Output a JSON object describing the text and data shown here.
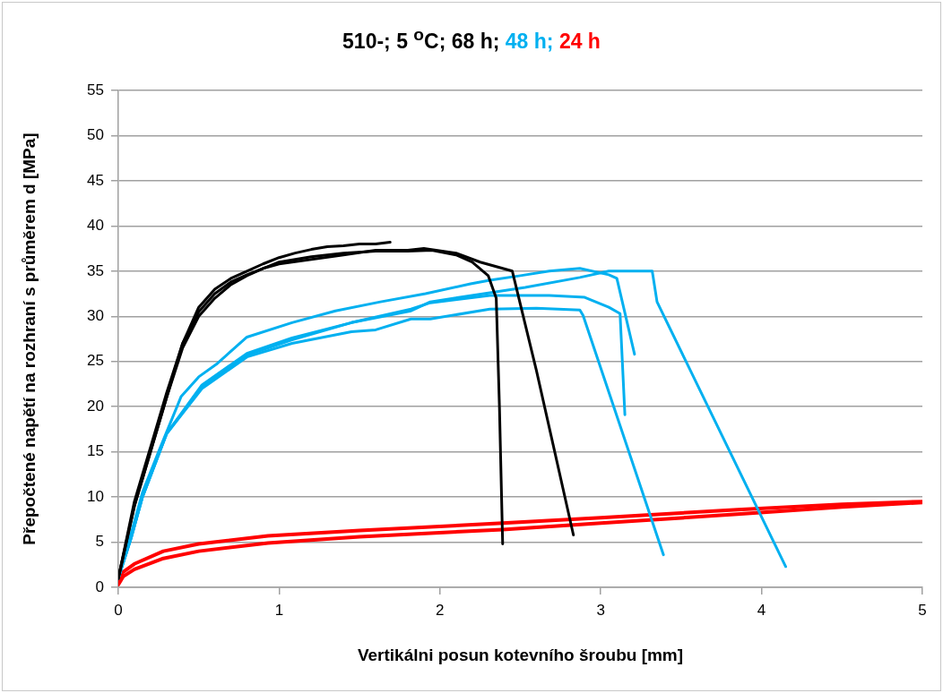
{
  "chart_data": {
    "type": "line",
    "title": "510-; 5 $^{o}$C;",
    "xlabel": "Vertikálni posun kotevního šroubu [mm]",
    "ylabel": "Přepočtené napětí na rozhraní s průměrem d [MPa]",
    "xlim": [
      0,
      5
    ],
    "xticks": [
      0,
      1,
      2,
      3,
      4,
      5
    ],
    "ylim": [
      0,
      55
    ],
    "yticks": [
      0,
      5,
      10,
      15,
      20,
      25,
      30,
      35,
      40,
      45,
      50,
      55
    ],
    "grid": "y",
    "legend": "top",
    "marker": "none",
    "line_style": "solid",
    "series": [
      {
        "name": "68 h;",
        "color": "#000000",
        "x": [
          0,
          0.1,
          0.2,
          0.3,
          0.4,
          0.5,
          0.6,
          0.7,
          0.8,
          0.9,
          1.0,
          1.1,
          1.2,
          1.3,
          1.4,
          1.5,
          1.6,
          1.69
        ],
        "values": [
          1,
          9,
          15,
          21,
          27,
          31,
          33,
          34.2,
          35,
          35.8,
          36.5,
          37,
          37.4,
          37.7,
          37.8,
          38,
          38,
          38.2
        ]
      },
      {
        "color": "#000000",
        "x": [
          0,
          0.1,
          0.2,
          0.3,
          0.4,
          0.5,
          0.6,
          0.7,
          0.8,
          0.9,
          1.0,
          1.2,
          1.4,
          1.6,
          1.8,
          1.95,
          2.1,
          2.2,
          2.3,
          2.35,
          2.37,
          2.39
        ],
        "values": [
          1,
          9,
          15,
          21,
          26.5,
          30,
          32,
          33.5,
          34.5,
          35.3,
          36,
          36.6,
          37,
          37.2,
          37.2,
          37.3,
          36.8,
          36,
          34.5,
          32,
          20,
          4.8
        ]
      },
      {
        "color": "#000000",
        "x": [
          0,
          0.1,
          0.2,
          0.3,
          0.4,
          0.5,
          0.6,
          0.7,
          0.8,
          0.9,
          1.0,
          1.2,
          1.4,
          1.6,
          1.8,
          1.9,
          2.1,
          2.25,
          2.35,
          2.45,
          2.6,
          2.83
        ],
        "values": [
          1,
          9.5,
          15.5,
          21.5,
          27,
          30.5,
          32.5,
          33.8,
          34.6,
          35.3,
          35.8,
          36.3,
          36.8,
          37.3,
          37.3,
          37.5,
          37,
          36,
          35.5,
          35,
          24,
          5.8
        ]
      },
      {
        "name": "48 h;",
        "color": "#00b0f0",
        "x": [
          0,
          0.08,
          0.15,
          0.25,
          0.39,
          0.5,
          0.61,
          0.8,
          1.08,
          1.35,
          1.63,
          1.91,
          2.19,
          2.31,
          2.5,
          2.68,
          2.87,
          3.05,
          3.1,
          3.21
        ],
        "values": [
          1,
          6,
          10.5,
          15,
          21.1,
          23.3,
          24.7,
          27.7,
          29.3,
          30.6,
          31.6,
          32.5,
          33.6,
          34,
          34.5,
          35,
          35.3,
          34.6,
          34.2,
          25.8
        ]
      },
      {
        "color": "#00b0f0",
        "x": [
          0,
          0.08,
          0.15,
          0.3,
          0.52,
          0.8,
          1.08,
          1.45,
          1.82,
          1.94,
          2.31,
          2.53,
          2.87,
          3.05,
          3.23,
          3.32,
          3.35,
          4.15
        ],
        "values": [
          1,
          5.5,
          10,
          17,
          22.4,
          25.9,
          27.6,
          29.3,
          30.6,
          31.6,
          32.6,
          33.2,
          34.3,
          35,
          35,
          35,
          31.6,
          2.3
        ]
      },
      {
        "color": "#00b0f0",
        "x": [
          0,
          0.08,
          0.15,
          0.3,
          0.52,
          0.8,
          1.08,
          1.45,
          1.82,
          1.94,
          2.31,
          2.68,
          2.9,
          3.05,
          3.12,
          3.15
        ],
        "values": [
          1,
          5.5,
          10,
          17,
          22.2,
          25.7,
          27.4,
          29.3,
          30.8,
          31.5,
          32.3,
          32.3,
          32.1,
          31,
          30.3,
          19.1
        ]
      },
      {
        "color": "#00b0f0",
        "x": [
          0,
          0.08,
          0.15,
          0.3,
          0.52,
          0.8,
          1.08,
          1.45,
          1.6,
          1.82,
          1.94,
          2.31,
          2.6,
          2.87,
          2.89,
          3.39
        ],
        "values": [
          1,
          5.5,
          10,
          17,
          22,
          25.5,
          27,
          28.3,
          28.5,
          29.7,
          29.7,
          30.8,
          30.9,
          30.7,
          30.1,
          3.6
        ]
      },
      {
        "name": "24 h",
        "color": "#ff0000",
        "x": [
          0,
          0.03,
          0.1,
          0.28,
          0.5,
          0.93,
          1.5,
          2.39,
          3,
          3.85,
          4.5,
          5
        ],
        "values": [
          0.8,
          1.7,
          2.6,
          4,
          4.8,
          5.7,
          6.3,
          7.1,
          7.7,
          8.6,
          9.2,
          9.5
        ]
      },
      {
        "color": "#ff0000",
        "x": [
          0,
          0.03,
          0.1,
          0.28,
          0.5,
          0.93,
          1.5,
          2.39,
          3,
          3.85,
          4.5,
          5
        ],
        "values": [
          0.3,
          1.2,
          2,
          3.2,
          4,
          4.9,
          5.6,
          6.4,
          7.1,
          8.1,
          8.9,
          9.4
        ]
      }
    ]
  }
}
